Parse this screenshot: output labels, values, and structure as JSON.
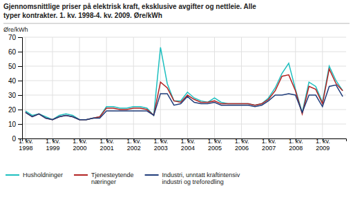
{
  "chart_data": {
    "type": "line",
    "title": "Gjennomsnittlige priser på elektrisk kraft, eksklusive avgifter og nettleie. Alle\ntyper kontrakter. 1. kv. 1998-4. kv. 2009. Øre/kWh",
    "ylabel": "Øre/kWh",
    "categories": [
      "1. kv.\n1998",
      null,
      null,
      null,
      "1. kv.\n1999",
      null,
      null,
      null,
      "1. kv.\n2000",
      null,
      null,
      null,
      "1. kv.\n2001",
      null,
      null,
      null,
      "1. kv.\n2002",
      null,
      null,
      null,
      "1. kv.\n2003",
      null,
      null,
      null,
      "1. kv.\n2004",
      null,
      null,
      null,
      "1. kv.\n2005",
      null,
      null,
      null,
      "1. kv.\n2006",
      null,
      null,
      null,
      "1. kv.\n2007",
      null,
      null,
      null,
      "1. kv.\n2008",
      null,
      null,
      null,
      "1. kv.\n2009",
      null,
      null,
      null
    ],
    "series": [
      {
        "name": "Husholdninger",
        "color": "#1dbfbf",
        "values": [
          19,
          16,
          17,
          15,
          13,
          16,
          17,
          16,
          13,
          13,
          14,
          15,
          22,
          22,
          21,
          21,
          22,
          22,
          21,
          16,
          63,
          38,
          26,
          26,
          32,
          28,
          26,
          25,
          28,
          25,
          24,
          24,
          24,
          24,
          23,
          24,
          28,
          35,
          45,
          52,
          34,
          18,
          39,
          36,
          25,
          50,
          40,
          33
        ]
      },
      {
        "name": "Tjenesteytende\nnæringer",
        "color": "#b22222",
        "values": [
          18,
          15,
          17,
          14,
          13,
          15,
          16,
          15,
          13,
          13,
          14,
          15,
          21,
          21,
          20,
          20,
          21,
          21,
          20,
          16,
          39,
          35,
          26,
          25,
          30,
          27,
          25,
          25,
          26,
          24,
          24,
          24,
          24,
          24,
          23,
          24,
          27,
          33,
          43,
          44,
          33,
          17,
          36,
          34,
          24,
          48,
          38,
          33
        ]
      },
      {
        "name": "Industri, unntatt kraftintensiv\nindustri og treforedling",
        "color": "#1f3c7a",
        "values": [
          18,
          15,
          17,
          14,
          13,
          15,
          16,
          15,
          13,
          13,
          14,
          14,
          19,
          19,
          19,
          19,
          19,
          19,
          19,
          16,
          31,
          31,
          23,
          24,
          29,
          25,
          24,
          24,
          25,
          23,
          23,
          23,
          23,
          23,
          22,
          23,
          26,
          30,
          30,
          31,
          30,
          18,
          30,
          30,
          22,
          36,
          37,
          29
        ]
      }
    ],
    "ylim": [
      0,
      70
    ],
    "yticks": [
      0,
      10,
      20,
      30,
      40,
      50,
      60,
      70
    ],
    "grid": true,
    "legend": "bottom"
  }
}
